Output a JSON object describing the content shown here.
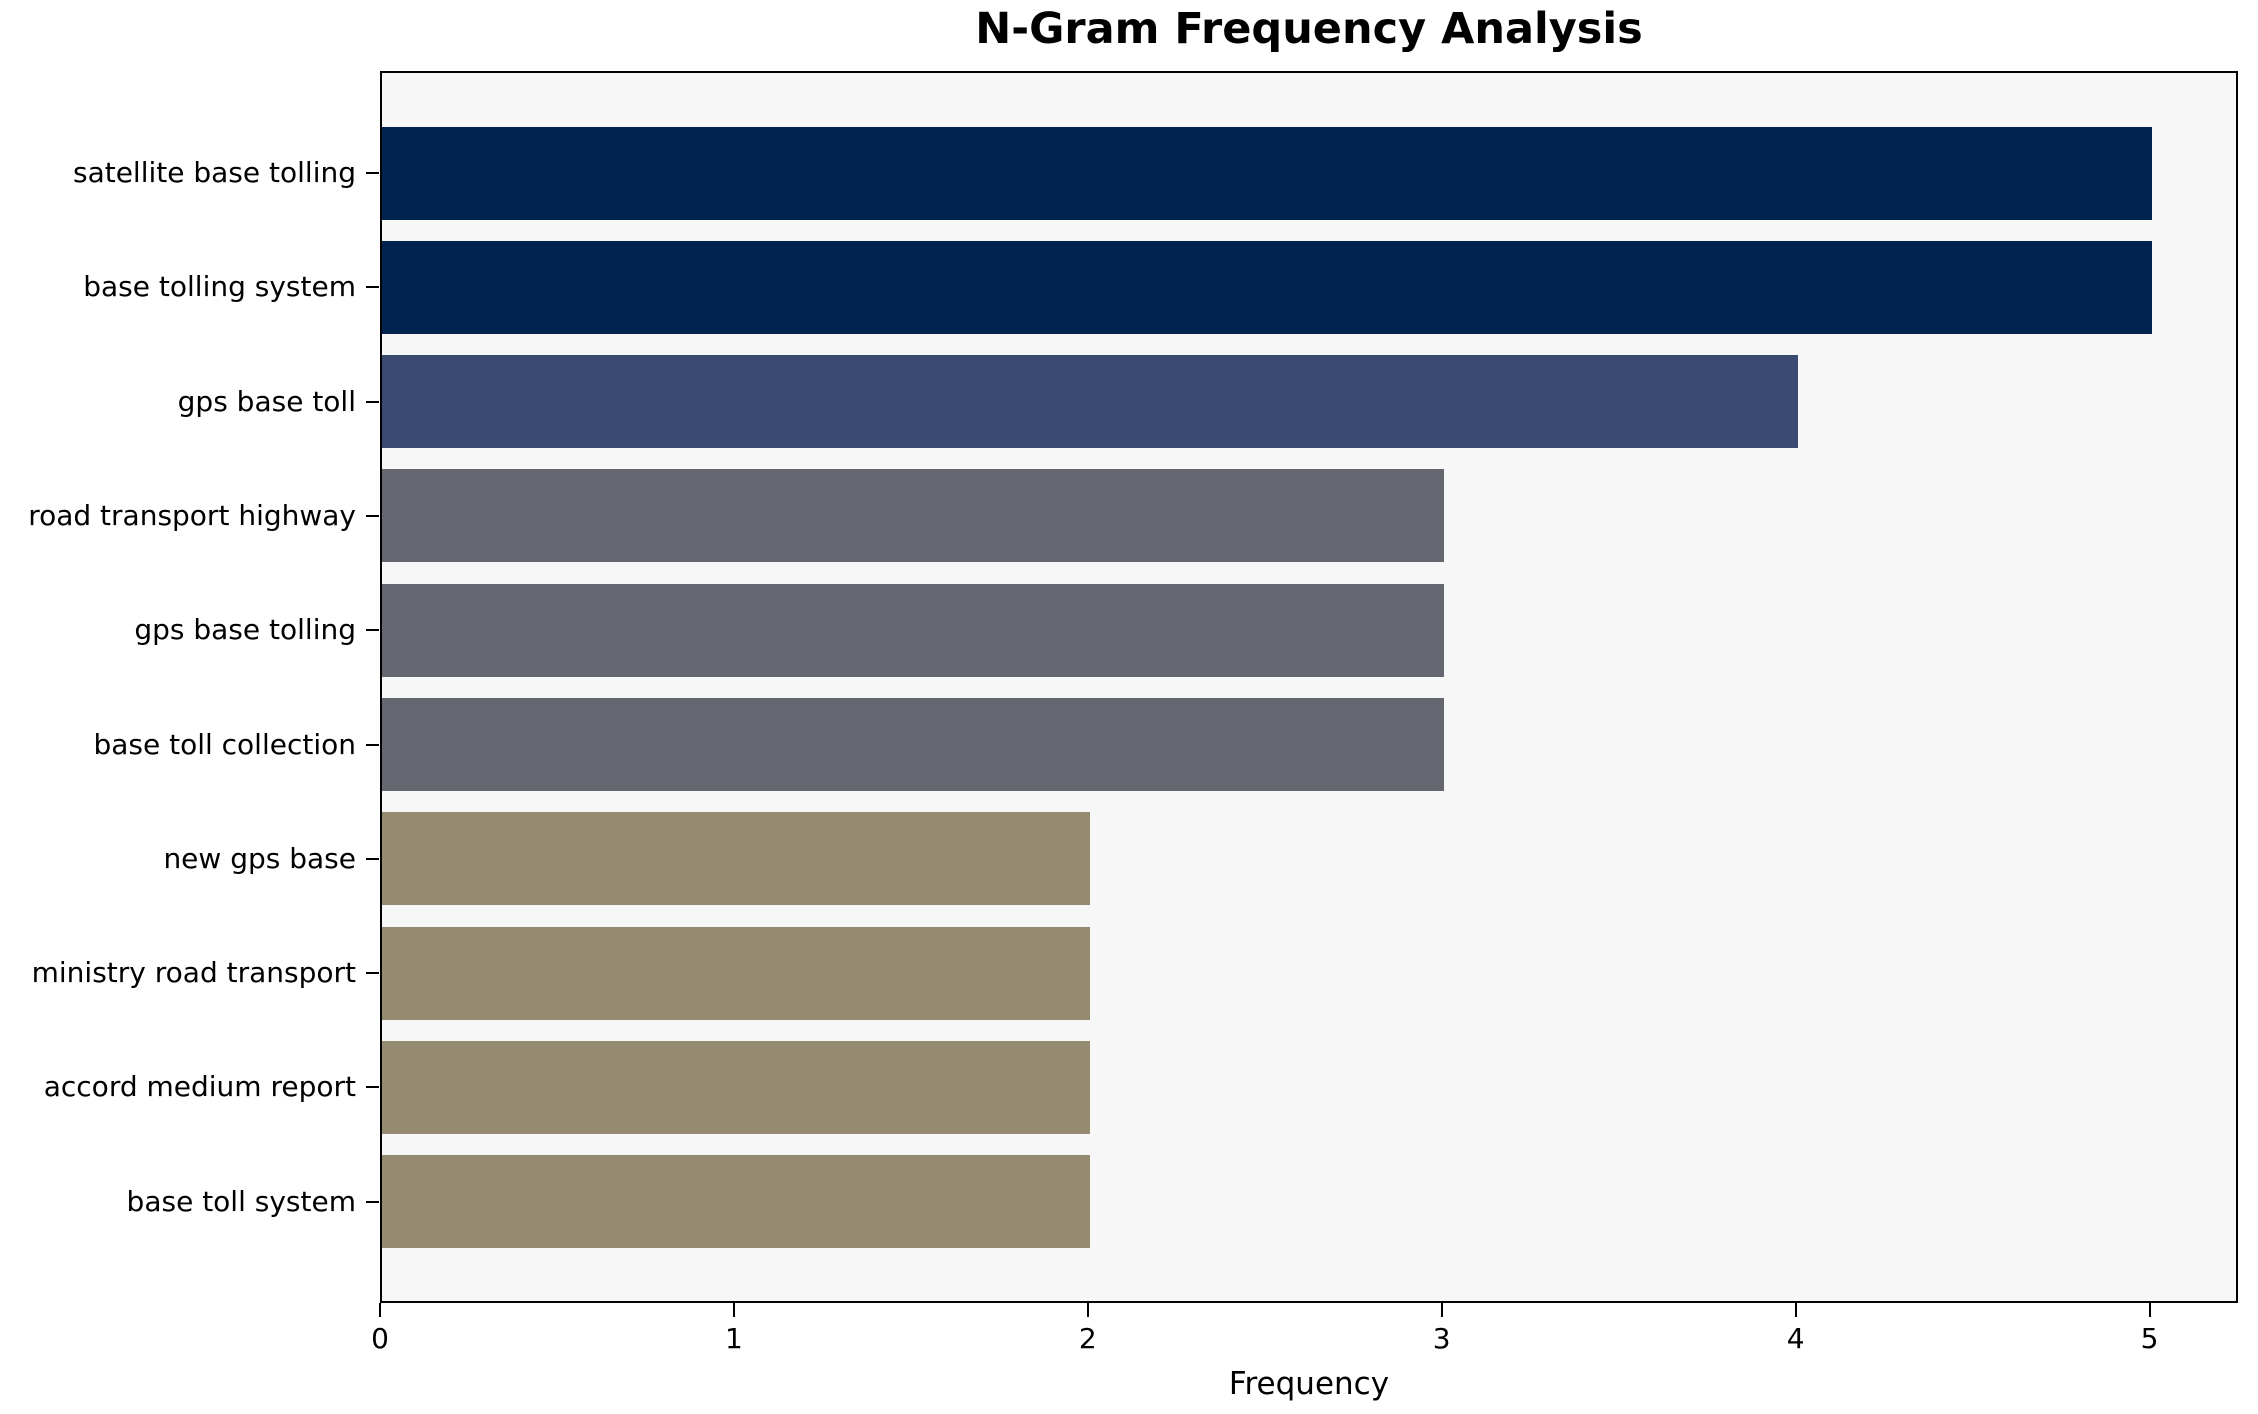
{
  "chart_data": {
    "type": "bar",
    "orientation": "horizontal",
    "title": "N-Gram Frequency Analysis",
    "xlabel": "Frequency",
    "ylabel": "",
    "categories": [
      "satellite base tolling",
      "base tolling system",
      "gps base toll",
      "road transport highway",
      "gps base tolling",
      "base toll collection",
      "new gps base",
      "ministry road transport",
      "accord medium report",
      "base toll system"
    ],
    "values": [
      5,
      5,
      4,
      3,
      3,
      3,
      2,
      2,
      2,
      2
    ],
    "bar_colors": [
      "#00234f",
      "#00234f",
      "#3b4a70",
      "#646670",
      "#646670",
      "#646670",
      "#948b70",
      "#948b70",
      "#948b70",
      "#948b70"
    ],
    "xlim": [
      0,
      5.25
    ],
    "xticks": [
      0,
      1,
      2,
      3,
      4,
      5
    ],
    "grid": false,
    "legend": "none",
    "plot_bg": "#f7f7f8",
    "figure_bg": "#ffffff",
    "axis_color": "#000000"
  }
}
